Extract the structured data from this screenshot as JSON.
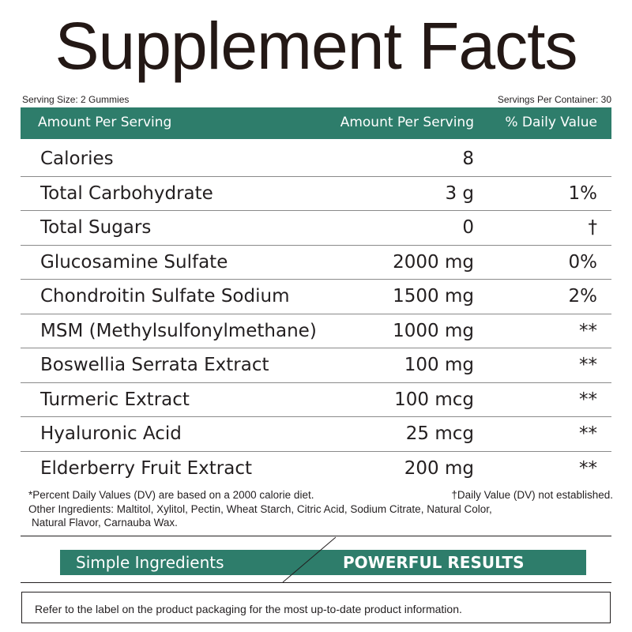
{
  "title": "Supplement Facts",
  "serving_size": "Serving Size: 2 Gummies",
  "servings_per_container": "Servings Per Container: 30",
  "header": {
    "col1": "Amount Per Serving",
    "col2": "Amount Per Serving",
    "col3": "% Daily Value"
  },
  "rows": [
    {
      "name": "Calories",
      "amount": "8",
      "dv": ""
    },
    {
      "name": "Total Carbohydrate",
      "amount": "3 g",
      "dv": "1%"
    },
    {
      "name": "Total Sugars",
      "amount": "0",
      "dv": "†"
    },
    {
      "name": "Glucosamine Sulfate",
      "amount": "2000 mg",
      "dv": "0%"
    },
    {
      "name": "Chondroitin Sulfate Sodium",
      "amount": "1500 mg",
      "dv": "2%"
    },
    {
      "name": "MSM (Methylsulfonylmethane)",
      "amount": "1000 mg",
      "dv": "**"
    },
    {
      "name": "Boswellia Serrata Extract",
      "amount": "100 mg",
      "dv": "**"
    },
    {
      "name": "Turmeric Extract",
      "amount": "100 mcg",
      "dv": "**"
    },
    {
      "name": "Hyaluronic Acid",
      "amount": "25 mcg",
      "dv": "**"
    },
    {
      "name": "Elderberry Fruit Extract",
      "amount": "200 mg",
      "dv": "**"
    }
  ],
  "footnotes": {
    "percent_dv": "*Percent Daily Values (DV) are based on a 2000 calorie diet.",
    "dv_not_established": "†Daily Value (DV) not established.",
    "other_ingredients_line1": "Other Ingredients: Maltitol, Xylitol, Pectin, Wheat Starch, Citric Acid, Sodium Citrate, Natural Color,",
    "other_ingredients_line2": "Natural Flavor, Carnauba Wax."
  },
  "banner": {
    "left": "Simple Ingredients",
    "right": "POWERFUL RESULTS"
  },
  "notice": "Refer to the label on the product packaging for the most up-to-date product information.",
  "colors": {
    "brand_green": "#2e7d6b",
    "text": "#231f20"
  }
}
